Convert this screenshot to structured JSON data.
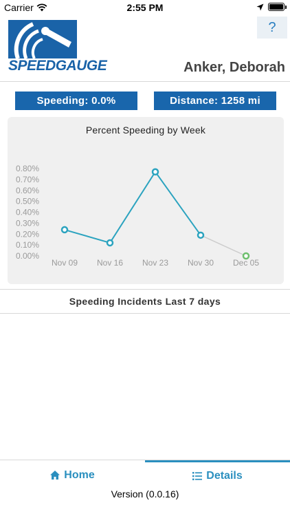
{
  "status_bar": {
    "carrier": "Carrier",
    "time": "2:55 PM"
  },
  "header": {
    "logo_text": "SPEEDGAUGE",
    "help_label": "?",
    "user_name": "Anker, Deborah"
  },
  "stats": {
    "speeding": "Speeding: 0.0%",
    "distance": "Distance: 1258 mi"
  },
  "chart": {
    "title": "Percent Speeding by Week"
  },
  "chart_data": {
    "type": "line",
    "title": "Percent Speeding by Week",
    "categories": [
      "Nov 09",
      "Nov 16",
      "Nov 23",
      "Nov 30",
      "Dec 05"
    ],
    "values": [
      0.24,
      0.12,
      0.77,
      0.19,
      0.0
    ],
    "yticks": [
      "0.00%",
      "0.10%",
      "0.20%",
      "0.30%",
      "0.40%",
      "0.50%",
      "0.60%",
      "0.70%",
      "0.80%"
    ],
    "ylim": [
      0,
      0.8
    ],
    "colors": {
      "line": "#2ba3bf",
      "last_segment": "#cccccc",
      "last_point": "#6dbf6d"
    },
    "grid": false
  },
  "incidents": {
    "title": "Speeding Incidents Last 7 days"
  },
  "tabs": [
    {
      "label": "Home",
      "icon": "home-icon"
    },
    {
      "label": "Details",
      "icon": "list-icon"
    }
  ],
  "footer": {
    "version": "Version (0.0.16)"
  }
}
